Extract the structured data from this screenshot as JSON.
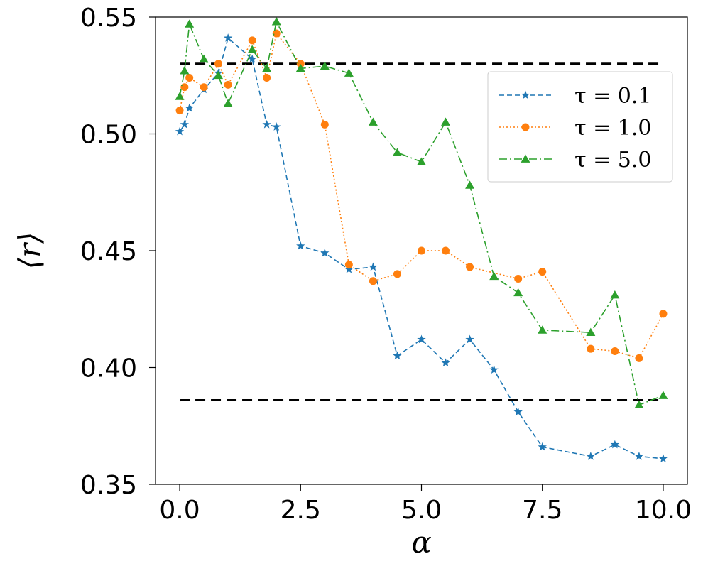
{
  "chart_data": {
    "type": "line",
    "title": "",
    "xlabel": "α",
    "ylabel": "⟨r⟩",
    "xlim": [
      -0.5,
      10.5
    ],
    "ylim": [
      0.35,
      0.55
    ],
    "xticks": [
      0.0,
      2.5,
      5.0,
      7.5,
      10.0
    ],
    "xtick_labels": [
      "0.0",
      "2.5",
      "5.0",
      "7.5",
      "10.0"
    ],
    "yticks": [
      0.35,
      0.4,
      0.45,
      0.5,
      0.55
    ],
    "ytick_labels": [
      "0.35",
      "0.40",
      "0.45",
      "0.50",
      "0.55"
    ],
    "grid": false,
    "legend_position": "upper-right",
    "reference_lines": [
      {
        "y": 0.53,
        "x_range": [
          0.0,
          10.0
        ],
        "color": "#000000",
        "style": "dashed"
      },
      {
        "y": 0.386,
        "x_range": [
          0.0,
          10.0
        ],
        "color": "#000000",
        "style": "dashed"
      }
    ],
    "series": [
      {
        "name": "τ = 0.1",
        "color": "#1f77b4",
        "marker": "star",
        "linestyle": "dashed",
        "x": [
          0.0,
          0.1,
          0.2,
          0.5,
          0.8,
          1.0,
          1.5,
          1.8,
          2.0,
          2.5,
          3.0,
          3.5,
          4.0,
          4.5,
          5.0,
          5.5,
          6.0,
          6.5,
          7.0,
          7.5,
          8.5,
          9.0,
          9.5,
          10.0
        ],
        "values": [
          0.501,
          0.504,
          0.511,
          0.519,
          0.526,
          0.541,
          0.532,
          0.504,
          0.503,
          0.452,
          0.449,
          0.442,
          0.443,
          0.405,
          0.412,
          0.402,
          0.412,
          0.399,
          0.381,
          0.366,
          0.362,
          0.367,
          0.362,
          0.361
        ]
      },
      {
        "name": "τ = 1.0",
        "color": "#ff7f0e",
        "marker": "circle",
        "linestyle": "dotted",
        "x": [
          0.0,
          0.1,
          0.2,
          0.5,
          0.8,
          1.0,
          1.5,
          1.8,
          2.0,
          2.5,
          3.0,
          3.5,
          4.0,
          4.5,
          5.0,
          5.5,
          6.0,
          7.0,
          7.5,
          8.5,
          9.0,
          9.5,
          10.0
        ],
        "values": [
          0.51,
          0.52,
          0.524,
          0.52,
          0.53,
          0.521,
          0.54,
          0.524,
          0.543,
          0.53,
          0.504,
          0.444,
          0.437,
          0.44,
          0.45,
          0.45,
          0.443,
          0.438,
          0.441,
          0.408,
          0.407,
          0.404,
          0.423
        ]
      },
      {
        "name": "τ = 5.0",
        "color": "#2ca02c",
        "marker": "triangle",
        "linestyle": "dashdot",
        "x": [
          0.0,
          0.1,
          0.2,
          0.5,
          0.8,
          1.0,
          1.5,
          1.8,
          2.0,
          2.5,
          3.0,
          3.5,
          4.0,
          4.5,
          5.0,
          5.5,
          6.0,
          6.5,
          7.0,
          7.5,
          8.5,
          9.0,
          9.5,
          10.0
        ],
        "values": [
          0.516,
          0.527,
          0.547,
          0.532,
          0.525,
          0.513,
          0.536,
          0.528,
          0.548,
          0.528,
          0.529,
          0.526,
          0.505,
          0.492,
          0.488,
          0.505,
          0.478,
          0.439,
          0.432,
          0.416,
          0.415,
          0.431,
          0.384,
          0.388
        ]
      }
    ]
  }
}
